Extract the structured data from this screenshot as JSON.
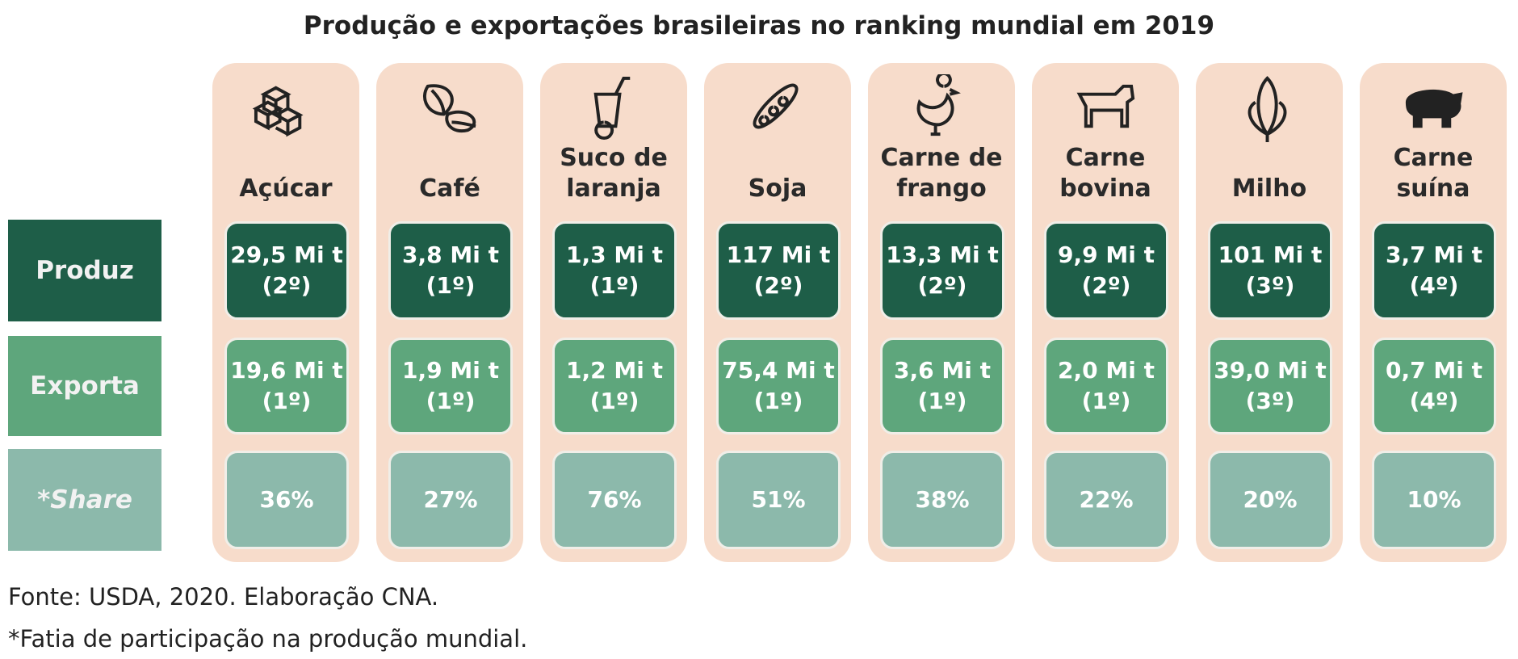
{
  "title": "Produção e exportações brasileiras no ranking mundial em 2019",
  "row_labels": [
    "Produz",
    "Exporta",
    "*Share"
  ],
  "columns": [
    {
      "name": [
        "Açúcar"
      ],
      "produz": [
        "29,5 Mi t",
        "(2º)"
      ],
      "exporta": [
        "19,6 Mi t",
        "(1º)"
      ],
      "share": "36%"
    },
    {
      "name": [
        "Café"
      ],
      "produz": [
        "3,8 Mi t",
        "(1º)"
      ],
      "exporta": [
        "1,9 Mi t",
        "(1º)"
      ],
      "share": "27%"
    },
    {
      "name": [
        "Suco de",
        "laranja"
      ],
      "produz": [
        "1,3 Mi t",
        "(1º)"
      ],
      "exporta": [
        "1,2 Mi t",
        "(1º)"
      ],
      "share": "76%"
    },
    {
      "name": [
        "Soja"
      ],
      "produz": [
        "117 Mi t",
        "(2º)"
      ],
      "exporta": [
        "75,4 Mi t",
        "(1º)"
      ],
      "share": "51%"
    },
    {
      "name": [
        "Carne de",
        "frango"
      ],
      "produz": [
        "13,3 Mi t",
        "(2º)"
      ],
      "exporta": [
        "3,6 Mi t",
        "(1º)"
      ],
      "share": "38%"
    },
    {
      "name": [
        "Carne",
        "bovina"
      ],
      "produz": [
        "9,9 Mi t",
        "(2º)"
      ],
      "exporta": [
        "2,0 Mi t",
        "(1º)"
      ],
      "share": "22%"
    },
    {
      "name": [
        "Milho"
      ],
      "produz": [
        "101 Mi t",
        "(3º)"
      ],
      "exporta": [
        "39,0 Mi t",
        "(3º)"
      ],
      "share": "20%"
    },
    {
      "name": [
        "Carne",
        "suína"
      ],
      "produz": [
        "3,7 Mi t",
        "(4º)"
      ],
      "exporta": [
        "0,7 Mi t",
        "(4º)"
      ],
      "share": "10%"
    }
  ],
  "footer": [
    "Fonte: USDA, 2020. Elaboração CNA.",
    "*Fatia de participação na produção mundial."
  ]
}
